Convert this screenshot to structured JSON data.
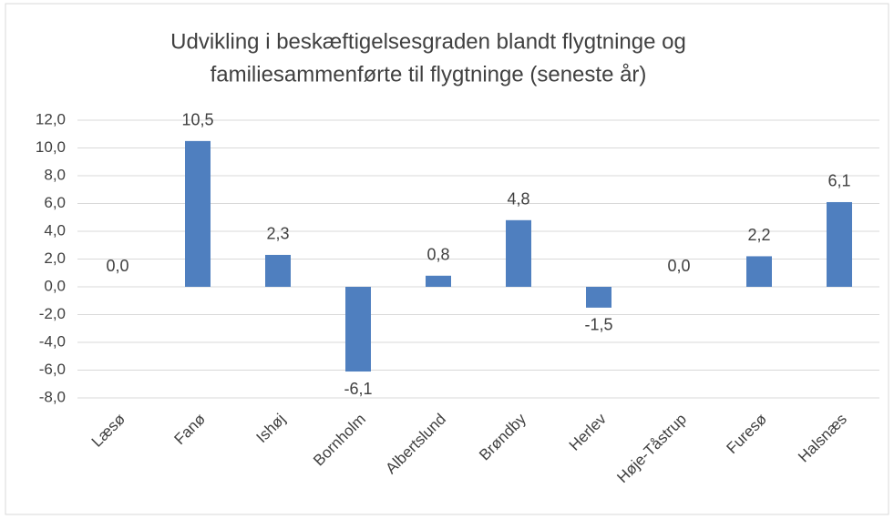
{
  "chart_data": {
    "type": "bar",
    "title": [
      "Udvikling i beskæftigelsesgraden blandt flygtninge og",
      "familiesammenførte til flygtninge (seneste år)"
    ],
    "categories": [
      "Læsø",
      "Fanø",
      "Ishøj",
      "Bornholm",
      "Albertslund",
      "Brøndby",
      "Herlev",
      "Høje-Tåstrup",
      "Furesø",
      "Halsnæs"
    ],
    "values": [
      0.0,
      10.5,
      2.3,
      -6.1,
      0.8,
      4.8,
      -1.5,
      0.0,
      2.2,
      6.1
    ],
    "value_labels": [
      "0,0",
      "10,5",
      "2,3",
      "-6,1",
      "0,8",
      "4,8",
      "-1,5",
      "0,0",
      "2,2",
      "6,1"
    ],
    "color": "#4f7fbf",
    "ylim": [
      -8,
      12
    ],
    "yticks": [
      {
        "value": -8,
        "label": "-8,0"
      },
      {
        "value": -6,
        "label": "-6,0"
      },
      {
        "value": -4,
        "label": "-4,0"
      },
      {
        "value": -2,
        "label": "-2,0"
      },
      {
        "value": 0,
        "label": "0,0"
      },
      {
        "value": 2,
        "label": "2,0"
      },
      {
        "value": 4,
        "label": "4,0"
      },
      {
        "value": 6,
        "label": "6,0"
      },
      {
        "value": 8,
        "label": "8,0"
      },
      {
        "value": 10,
        "label": "10,0"
      },
      {
        "value": 12,
        "label": "12,0"
      }
    ],
    "grid": true
  }
}
